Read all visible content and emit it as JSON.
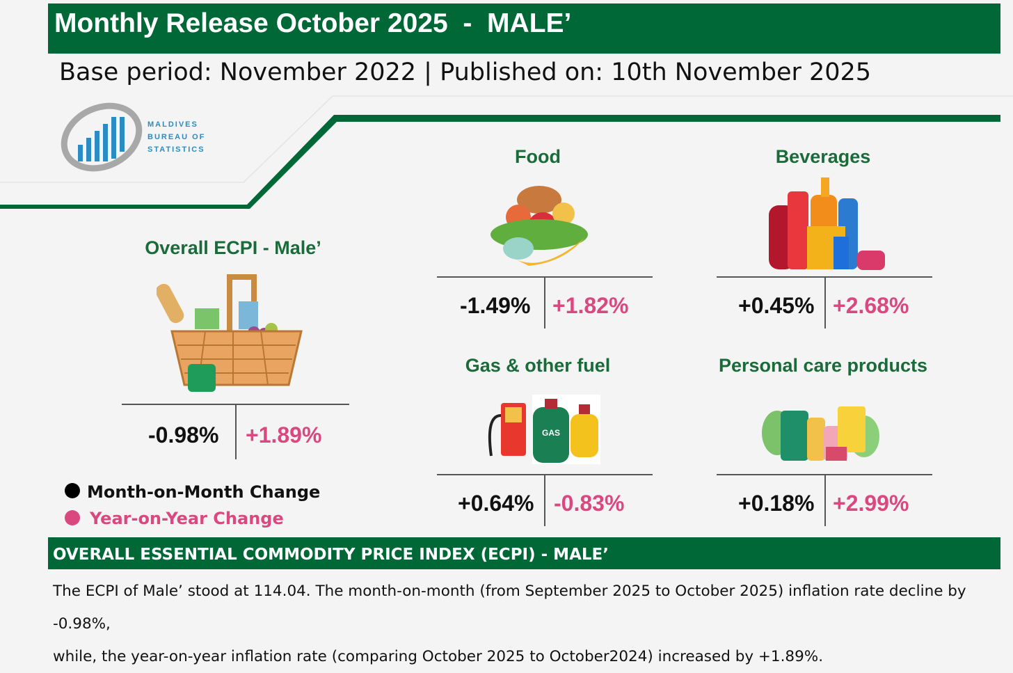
{
  "header": {
    "title": "Monthly Release October 2025  -  MALE’",
    "subtitle": "Base period: November 2022 | Published on: 10th November 2025"
  },
  "logo": {
    "lines": [
      "MALDIVES",
      "BUREAU OF",
      "STATISTICS"
    ],
    "icon": "bar-chart-swoosh-icon"
  },
  "overall": {
    "title": "Overall ECPI -  Male’",
    "mom": "-0.98%",
    "yoy": "+1.89%",
    "icon": "shopping-basket-icon"
  },
  "categories": [
    {
      "title": "Food",
      "mom": "-1.49%",
      "yoy": "+1.82%",
      "icon": "food-icon"
    },
    {
      "title": "Beverages",
      "mom": "+0.45%",
      "yoy": "+2.68%",
      "icon": "beverages-icon"
    },
    {
      "title": "Gas & other fuel",
      "mom": "+0.64%",
      "yoy": "-0.83%",
      "icon": "gas-cylinder-icon",
      "gas_label": "GAS"
    },
    {
      "title": "Personal care products",
      "mom": "+0.18%",
      "yoy": "+2.99%",
      "icon": "personal-care-icon"
    }
  ],
  "legend": {
    "mom_label": "Month-on-Month Change",
    "yoy_label": "Year-on-Year Change"
  },
  "summary": {
    "title": "OVERALL ESSENTIAL COMMODITY PRICE INDEX (ECPI) - MALE’",
    "line1": "The ECPI of Male’ stood at 114.04. The month-on-month (from September  2025 to October 2025) inflation rate decline by -0.98%,",
    "line2": "while, the year-on-year inflation rate (comparing October 2025 to October2024) increased by +1.89%."
  },
  "colors": {
    "brand_green": "#006837",
    "heading_green": "#1b6b3a",
    "yoy_pink": "#d9487f",
    "logo_blue": "#2a8cc4"
  }
}
